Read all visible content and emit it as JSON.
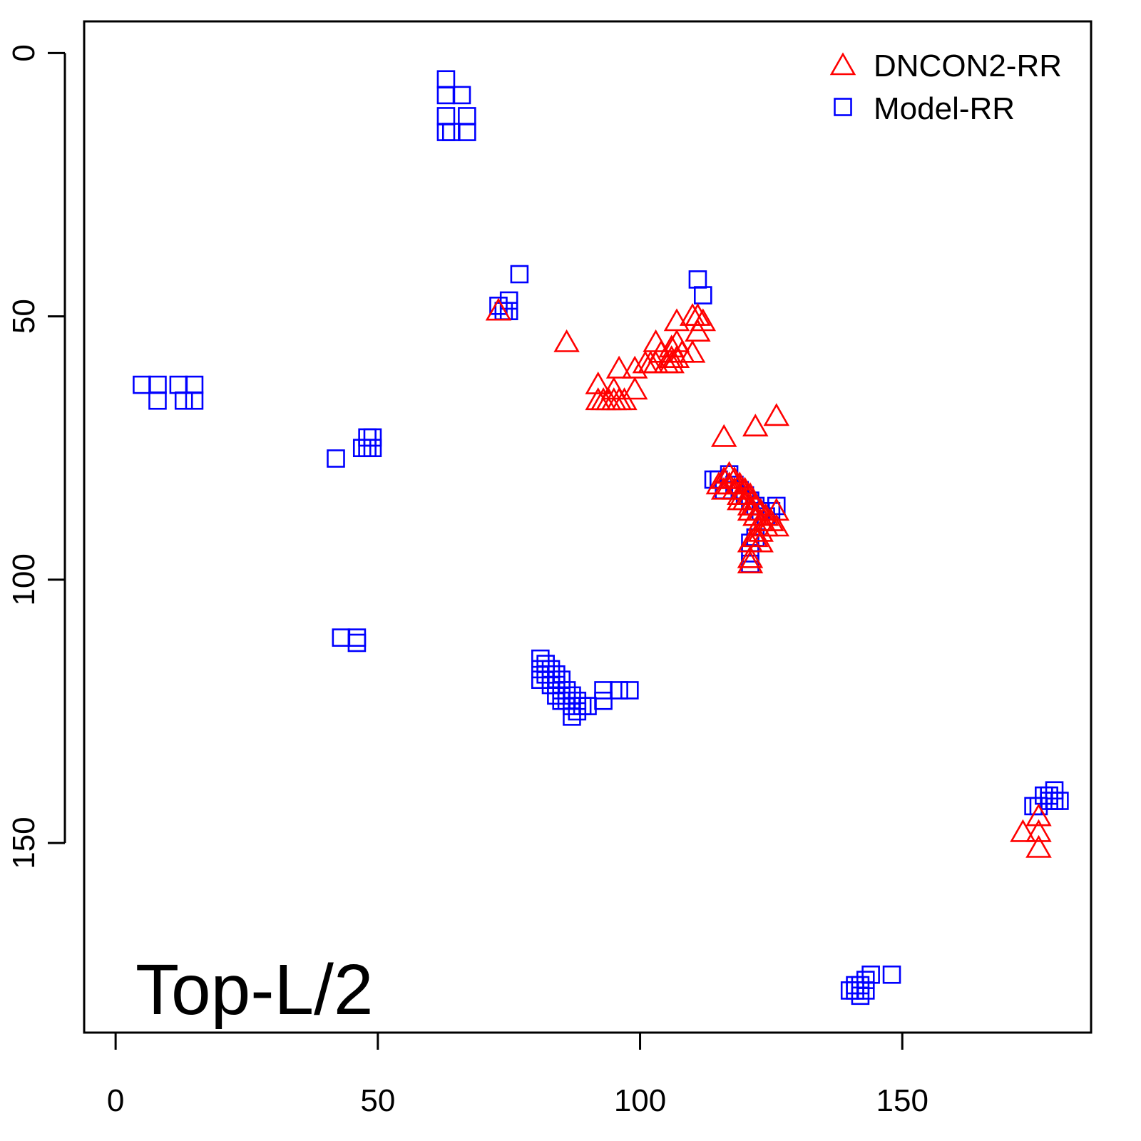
{
  "chart_data": {
    "type": "scatter",
    "title": "",
    "xlabel": "",
    "ylabel": "",
    "xlim": [
      -6,
      186
    ],
    "ylim": [
      -6,
      186
    ],
    "y_inverted": true,
    "x_ticks": [
      0,
      50,
      100,
      150
    ],
    "y_ticks": [
      0,
      50,
      100,
      150
    ],
    "grid": false,
    "legend_position": "top-right",
    "annotation": "Top-L/2",
    "series": [
      {
        "name": "DNCON2-RR",
        "marker": "triangle",
        "color": "#ff0000",
        "points": [
          [
            73,
            49
          ],
          [
            86,
            55
          ],
          [
            92,
            63
          ],
          [
            92,
            66
          ],
          [
            93,
            66
          ],
          [
            94,
            66
          ],
          [
            95,
            64
          ],
          [
            95,
            66
          ],
          [
            96,
            60
          ],
          [
            96,
            66
          ],
          [
            97,
            66
          ],
          [
            99,
            60
          ],
          [
            99,
            64
          ],
          [
            101,
            59
          ],
          [
            102,
            59
          ],
          [
            103,
            55
          ],
          [
            103,
            59
          ],
          [
            104,
            57
          ],
          [
            105,
            59
          ],
          [
            106,
            56
          ],
          [
            106,
            58
          ],
          [
            106,
            59
          ],
          [
            107,
            51
          ],
          [
            107,
            55
          ],
          [
            107,
            58
          ],
          [
            108,
            57
          ],
          [
            110,
            50
          ],
          [
            110,
            57
          ],
          [
            111,
            50
          ],
          [
            111,
            53
          ],
          [
            112,
            51
          ],
          [
            116,
            73
          ],
          [
            122,
            71
          ],
          [
            126,
            69
          ],
          [
            115,
            82
          ],
          [
            116,
            81
          ],
          [
            116,
            83
          ],
          [
            117,
            80
          ],
          [
            117,
            82
          ],
          [
            118,
            81
          ],
          [
            118,
            83
          ],
          [
            119,
            82
          ],
          [
            119,
            84
          ],
          [
            119,
            85
          ],
          [
            120,
            83
          ],
          [
            120,
            85
          ],
          [
            121,
            84
          ],
          [
            121,
            86
          ],
          [
            121,
            87
          ],
          [
            122,
            86
          ],
          [
            122,
            88
          ],
          [
            123,
            87
          ],
          [
            123,
            89
          ],
          [
            124,
            88
          ],
          [
            124,
            90
          ],
          [
            125,
            89
          ],
          [
            126,
            87
          ],
          [
            126,
            90
          ],
          [
            121,
            93
          ],
          [
            121,
            96
          ],
          [
            121,
            97
          ],
          [
            122,
            92
          ],
          [
            123,
            91
          ],
          [
            123,
            93
          ],
          [
            173,
            148
          ],
          [
            176,
            145
          ],
          [
            176,
            148
          ],
          [
            176,
            151
          ]
        ]
      },
      {
        "name": "Model-RR",
        "marker": "square",
        "color": "#0000ff",
        "points": [
          [
            63,
            5
          ],
          [
            63,
            8
          ],
          [
            63,
            12
          ],
          [
            63,
            15
          ],
          [
            64,
            15
          ],
          [
            66,
            8
          ],
          [
            67,
            12
          ],
          [
            67,
            15
          ],
          [
            77,
            42
          ],
          [
            73,
            48
          ],
          [
            74,
            49
          ],
          [
            75,
            47
          ],
          [
            75,
            49
          ],
          [
            111,
            43
          ],
          [
            112,
            46
          ],
          [
            5,
            63
          ],
          [
            8,
            63
          ],
          [
            8,
            66
          ],
          [
            12,
            63
          ],
          [
            13,
            66
          ],
          [
            15,
            63
          ],
          [
            15,
            66
          ],
          [
            42,
            77
          ],
          [
            47,
            75
          ],
          [
            48,
            73
          ],
          [
            48,
            75
          ],
          [
            49,
            73
          ],
          [
            49,
            75
          ],
          [
            114,
            81
          ],
          [
            115,
            81
          ],
          [
            116,
            83
          ],
          [
            117,
            80
          ],
          [
            118,
            82
          ],
          [
            119,
            83
          ],
          [
            120,
            84
          ],
          [
            121,
            85
          ],
          [
            122,
            86
          ],
          [
            123,
            87
          ],
          [
            124,
            88
          ],
          [
            125,
            87
          ],
          [
            126,
            86
          ],
          [
            121,
            93
          ],
          [
            121,
            95
          ],
          [
            121,
            97
          ],
          [
            122,
            92
          ],
          [
            43,
            111
          ],
          [
            46,
            111
          ],
          [
            46,
            112
          ],
          [
            81,
            115
          ],
          [
            81,
            117
          ],
          [
            81,
            119
          ],
          [
            82,
            116
          ],
          [
            82,
            118
          ],
          [
            83,
            117
          ],
          [
            83,
            119
          ],
          [
            83,
            120
          ],
          [
            84,
            118
          ],
          [
            84,
            120
          ],
          [
            84,
            122
          ],
          [
            85,
            119
          ],
          [
            85,
            121
          ],
          [
            85,
            123
          ],
          [
            86,
            121
          ],
          [
            86,
            123
          ],
          [
            87,
            122
          ],
          [
            87,
            124
          ],
          [
            87,
            126
          ],
          [
            88,
            123
          ],
          [
            88,
            125
          ],
          [
            89,
            124
          ],
          [
            90,
            124
          ],
          [
            93,
            123
          ],
          [
            93,
            121
          ],
          [
            96,
            121
          ],
          [
            98,
            121
          ],
          [
            175,
            143
          ],
          [
            176,
            143
          ],
          [
            177,
            141
          ],
          [
            178,
            141
          ],
          [
            178,
            142
          ],
          [
            179,
            140
          ],
          [
            179,
            142
          ],
          [
            180,
            142
          ],
          [
            140,
            178
          ],
          [
            141,
            177
          ],
          [
            141,
            178
          ],
          [
            142,
            177
          ],
          [
            142,
            179
          ],
          [
            143,
            176
          ],
          [
            143,
            178
          ],
          [
            144,
            175
          ],
          [
            148,
            175
          ]
        ]
      }
    ]
  }
}
